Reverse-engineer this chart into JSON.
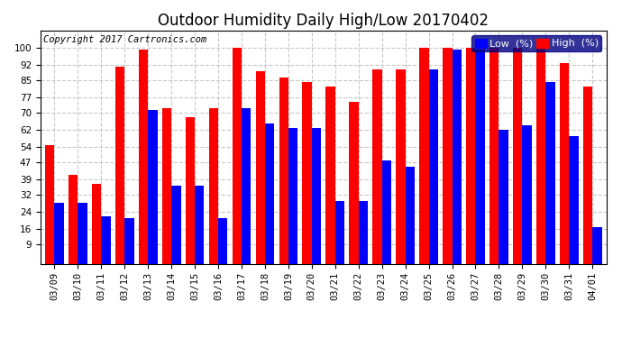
{
  "title": "Outdoor Humidity Daily High/Low 20170402",
  "copyright": "Copyright 2017 Cartronics.com",
  "dates": [
    "03/09",
    "03/10",
    "03/11",
    "03/12",
    "03/13",
    "03/14",
    "03/15",
    "03/16",
    "03/17",
    "03/18",
    "03/19",
    "03/20",
    "03/21",
    "03/22",
    "03/23",
    "03/24",
    "03/25",
    "03/26",
    "03/27",
    "03/28",
    "03/29",
    "03/30",
    "03/31",
    "04/01"
  ],
  "high": [
    55,
    41,
    37,
    91,
    99,
    72,
    68,
    72,
    100,
    89,
    86,
    84,
    82,
    75,
    90,
    90,
    100,
    100,
    100,
    100,
    100,
    100,
    93,
    82
  ],
  "low": [
    28,
    28,
    22,
    21,
    71,
    36,
    36,
    21,
    72,
    65,
    63,
    63,
    29,
    29,
    48,
    45,
    90,
    99,
    99,
    62,
    64,
    84,
    59,
    17
  ],
  "bar_width": 0.4,
  "ylim": [
    0,
    108
  ],
  "yticks": [
    9,
    16,
    24,
    32,
    39,
    47,
    54,
    62,
    70,
    77,
    85,
    92,
    100
  ],
  "high_color": "#ff0000",
  "low_color": "#0000ff",
  "bg_color": "#ffffff",
  "grid_color": "#c8c8c8",
  "title_fontsize": 12,
  "legend_fontsize": 8,
  "tick_fontsize": 7.5,
  "copyright_fontsize": 7.5
}
